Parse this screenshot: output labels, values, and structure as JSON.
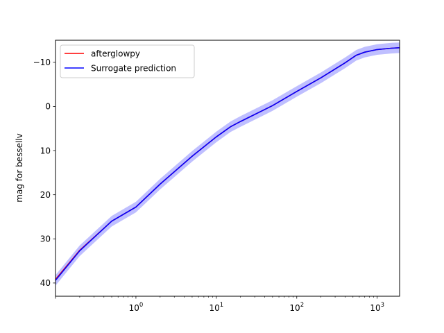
{
  "chart_data": {
    "type": "line",
    "title": "",
    "xlabel": "",
    "ylabel": "mag for bessellv",
    "x_scale": "log",
    "y_inverted": true,
    "xlim": [
      0.1,
      1900
    ],
    "ylim": [
      43,
      -15
    ],
    "grid": false,
    "legend_position": "top-left",
    "x_ticks": [
      {
        "value": 1,
        "base": "10",
        "exp": "0"
      },
      {
        "value": 10,
        "base": "10",
        "exp": "1"
      },
      {
        "value": 100,
        "base": "10",
        "exp": "2"
      },
      {
        "value": 1000,
        "base": "10",
        "exp": "3"
      }
    ],
    "y_ticks": [
      {
        "value": -10,
        "label": "−10"
      },
      {
        "value": 0,
        "label": "0"
      },
      {
        "value": 10,
        "label": "10"
      },
      {
        "value": 20,
        "label": "20"
      },
      {
        "value": 30,
        "label": "30"
      },
      {
        "value": 40,
        "label": "40"
      }
    ],
    "series": [
      {
        "name": "afterglowpy",
        "color": "#ff0000",
        "x": [
          0.1,
          0.2,
          0.5,
          1,
          2,
          5,
          10,
          15,
          20,
          50,
          100,
          200,
          400,
          550,
          700,
          1000,
          1500,
          1900
        ],
        "y": [
          39.2,
          32.6,
          26.0,
          22.8,
          17.6,
          11.3,
          6.9,
          4.6,
          3.4,
          -0.2,
          -3.4,
          -6.5,
          -9.9,
          -11.6,
          -12.3,
          -12.9,
          -13.2,
          -13.3
        ]
      },
      {
        "name": "Surrogate prediction",
        "color": "#0000ff",
        "band_color": "#0000ff",
        "band_halfwidth": 1.2,
        "x": [
          0.1,
          0.2,
          0.5,
          1,
          2,
          5,
          10,
          15,
          20,
          50,
          100,
          200,
          400,
          550,
          700,
          1000,
          1500,
          1900
        ],
        "y": [
          39.4,
          32.7,
          26.0,
          22.8,
          17.6,
          11.3,
          6.9,
          4.6,
          3.4,
          -0.2,
          -3.4,
          -6.5,
          -9.9,
          -11.6,
          -12.3,
          -12.9,
          -13.2,
          -13.3
        ]
      }
    ]
  }
}
